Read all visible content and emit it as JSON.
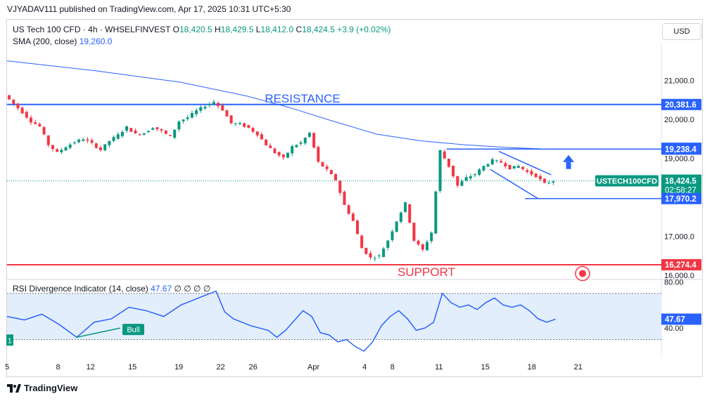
{
  "publisher": "VJYADAV111 published on TradingView.com, Apr 17, 2025 10:31 UTC+5:30",
  "header": {
    "symbol": "US Tech 100 CFD · 4h · WHSELFINVEST",
    "o_label": "O",
    "o": "18,420.5",
    "h_label": "H",
    "h": "18,429.5",
    "l_label": "L",
    "l": "18,412.0",
    "c_label": "C",
    "c": "18,424.5",
    "change": "+3.9 (+0.02%)",
    "sma_label": "SMA (200, close)",
    "sma_value": "19,260.0"
  },
  "currency": "USD",
  "rsi_header": {
    "label": "RSI Divergence Indicator (14, close)",
    "value": "47.67",
    "extra": "∅ ∅ ∅ ∅"
  },
  "footer": {
    "brand": "TradingView"
  },
  "colors": {
    "up": "#089981",
    "down": "#f23645",
    "sma": "#2962ff",
    "resistance": "#2962ff",
    "support": "#f23645",
    "rsi": "#2962ff",
    "rsi_band": "#e3eefc",
    "tag_symbol": "#089981"
  },
  "chart_data": [
    {
      "type": "candlestick",
      "title": "US Tech 100 CFD · 4h · WHSELFINVEST",
      "y_axis_ticks": [
        "21,000.0",
        "20,000.0",
        "19,000.0",
        "17,000.0",
        "16,000.0"
      ],
      "y_tick_values": [
        21000,
        20000,
        19000,
        17000,
        16000
      ],
      "x_axis_ticks": [
        "5",
        "8",
        "12",
        "15",
        "19",
        "22",
        "26",
        "Apr",
        "4",
        "8",
        "11",
        "15",
        "18",
        "21"
      ],
      "ylim": [
        15950,
        21800
      ],
      "price_tags": [
        {
          "label": "20,381.6",
          "value": 20381.6,
          "kind": "resistance"
        },
        {
          "label": "19,260.0",
          "value": 19260,
          "kind": "sma"
        },
        {
          "label": "19,238.4",
          "value": 19238.4,
          "kind": "level"
        },
        {
          "label": "18,424.5",
          "value": 18424.5,
          "kind": "last",
          "countdown": "02:58:27",
          "symbol": "USTECH100CFD"
        },
        {
          "label": "17,970.2",
          "value": 17970.2,
          "kind": "level"
        },
        {
          "label": "16,274.4",
          "value": 16274.4,
          "kind": "support"
        }
      ],
      "annotations": [
        {
          "text": "RESISTANCE",
          "value": 20381.6
        },
        {
          "text": "SUPPORT",
          "value": 16274.4
        }
      ],
      "price_path": [
        [
          0,
          20620
        ],
        [
          2,
          20400
        ],
        [
          4,
          20180
        ],
        [
          6,
          19950
        ],
        [
          8,
          19820
        ],
        [
          10,
          19350
        ],
        [
          12,
          19150
        ],
        [
          14,
          19300
        ],
        [
          16,
          19420
        ],
        [
          18,
          19500
        ],
        [
          20,
          19380
        ],
        [
          22,
          19220
        ],
        [
          24,
          19450
        ],
        [
          26,
          19600
        ],
        [
          28,
          19800
        ],
        [
          30,
          19620
        ],
        [
          32,
          19650
        ],
        [
          34,
          19800
        ],
        [
          36,
          19700
        ],
        [
          38,
          19550
        ],
        [
          40,
          19950
        ],
        [
          42,
          20050
        ],
        [
          44,
          20220
        ],
        [
          46,
          20350
        ],
        [
          48,
          20450
        ],
        [
          50,
          20250
        ],
        [
          52,
          19900
        ],
        [
          54,
          19880
        ],
        [
          56,
          19780
        ],
        [
          58,
          19620
        ],
        [
          60,
          19350
        ],
        [
          62,
          19150
        ],
        [
          64,
          19000
        ],
        [
          66,
          19300
        ],
        [
          68,
          19400
        ],
        [
          70,
          19650
        ],
        [
          72,
          18900
        ],
        [
          74,
          18700
        ],
        [
          76,
          18450
        ],
        [
          78,
          17800
        ],
        [
          80,
          17400
        ],
        [
          82,
          16700
        ],
        [
          84,
          16450
        ],
        [
          86,
          16500
        ],
        [
          88,
          16900
        ],
        [
          90,
          17400
        ],
        [
          92,
          17850
        ],
        [
          94,
          16900
        ],
        [
          96,
          16650
        ],
        [
          98,
          17100
        ],
        [
          100,
          19200
        ],
        [
          102,
          18800
        ],
        [
          104,
          18300
        ],
        [
          106,
          18500
        ],
        [
          108,
          18600
        ],
        [
          110,
          18800
        ],
        [
          112,
          18950
        ],
        [
          114,
          18900
        ],
        [
          116,
          18750
        ],
        [
          118,
          18800
        ],
        [
          120,
          18650
        ],
        [
          122,
          18550
        ],
        [
          124,
          18350
        ],
        [
          126,
          18425
        ]
      ],
      "sma_200": [
        [
          0,
          21500
        ],
        [
          20,
          21250
        ],
        [
          40,
          20950
        ],
        [
          55,
          20600
        ],
        [
          65,
          20300
        ],
        [
          75,
          19950
        ],
        [
          85,
          19620
        ],
        [
          95,
          19450
        ],
        [
          105,
          19350
        ],
        [
          115,
          19280
        ],
        [
          126,
          19230
        ]
      ],
      "channel_upper": [
        [
          113,
          19180
        ],
        [
          125,
          18580
        ]
      ],
      "channel_lower": [
        [
          111,
          18720
        ],
        [
          122,
          17970
        ]
      ]
    },
    {
      "type": "line",
      "title": "RSI Divergence Indicator (14, close)",
      "y_axis_ticks": [
        "80.00",
        "40.00"
      ],
      "y_tick_values": [
        80,
        40
      ],
      "band": [
        30,
        70
      ],
      "last_value": "47.67",
      "ylim": [
        20,
        82
      ],
      "divergence_label": "Bull",
      "divergence_start_label": "1",
      "rsi": [
        [
          0,
          50
        ],
        [
          4,
          47
        ],
        [
          8,
          52
        ],
        [
          12,
          43
        ],
        [
          16,
          32
        ],
        [
          20,
          45
        ],
        [
          24,
          48
        ],
        [
          28,
          58
        ],
        [
          32,
          55
        ],
        [
          36,
          50
        ],
        [
          40,
          60
        ],
        [
          44,
          66
        ],
        [
          48,
          72
        ],
        [
          50,
          54
        ],
        [
          52,
          48
        ],
        [
          56,
          42
        ],
        [
          60,
          38
        ],
        [
          62,
          32
        ],
        [
          64,
          38
        ],
        [
          68,
          55
        ],
        [
          70,
          50
        ],
        [
          72,
          36
        ],
        [
          74,
          34
        ],
        [
          76,
          28
        ],
        [
          78,
          30
        ],
        [
          80,
          24
        ],
        [
          82,
          20
        ],
        [
          84,
          28
        ],
        [
          86,
          42
        ],
        [
          88,
          50
        ],
        [
          90,
          55
        ],
        [
          92,
          48
        ],
        [
          94,
          38
        ],
        [
          96,
          40
        ],
        [
          98,
          45
        ],
        [
          100,
          70
        ],
        [
          102,
          62
        ],
        [
          104,
          58
        ],
        [
          106,
          60
        ],
        [
          108,
          56
        ],
        [
          110,
          62
        ],
        [
          112,
          66
        ],
        [
          114,
          60
        ],
        [
          116,
          58
        ],
        [
          118,
          60
        ],
        [
          120,
          55
        ],
        [
          122,
          48
        ],
        [
          124,
          45
        ],
        [
          126,
          47.67
        ]
      ]
    }
  ]
}
